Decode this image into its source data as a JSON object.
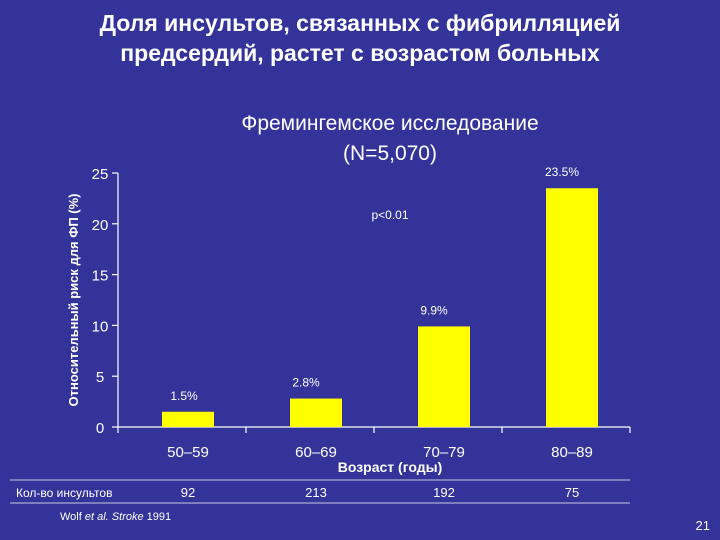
{
  "slide": {
    "title": "Доля инсультов, связанных с фибрилляцией\nпредсердий, растет с возрастом больных",
    "reference": {
      "author": "Wolf",
      "etal": "et al.",
      "journal": "Stroke",
      "year": "1991"
    },
    "page_number": "21"
  },
  "chart_data": {
    "type": "bar",
    "title": "Фремингемское исследование\n(N=5,070)",
    "xlabel": "Возраст (годы)",
    "ylabel": "Относительный риск для ФП (%)",
    "categories": [
      "50–59",
      "60–69",
      "70–79",
      "80–89"
    ],
    "values": [
      1.5,
      2.8,
      9.9,
      23.5
    ],
    "value_labels": [
      "1.5%",
      "2.8%",
      "9.9%",
      "23.5%"
    ],
    "ylim": [
      0,
      25
    ],
    "yticks": [
      0,
      5,
      10,
      15,
      20,
      25
    ],
    "annotation": "p<0.01",
    "bar_color": "#ffff00",
    "grid": false,
    "table_row": {
      "label": "Кол-во инсультов",
      "values": [
        "92",
        "213",
        "192",
        "75"
      ]
    }
  }
}
